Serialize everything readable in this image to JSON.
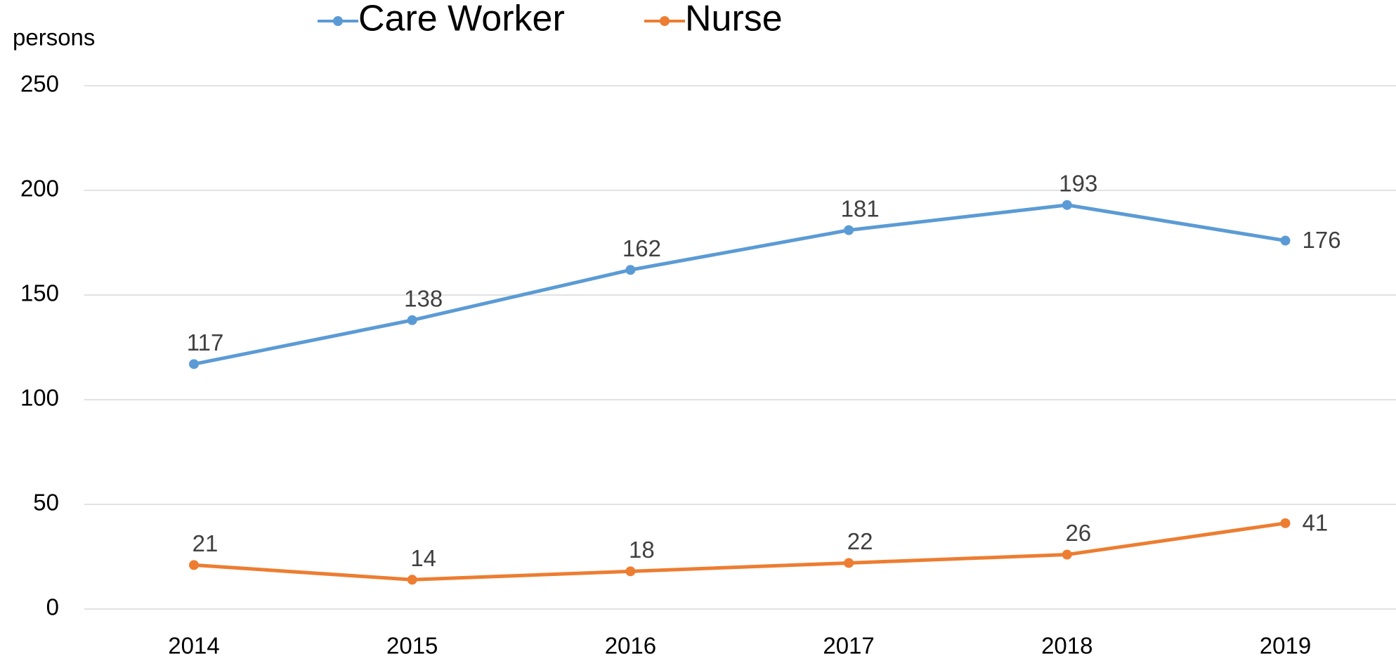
{
  "chart_data": {
    "type": "line",
    "y_label": "persons",
    "categories": [
      "2014",
      "2015",
      "2016",
      "2017",
      "2018",
      "2019"
    ],
    "series": [
      {
        "name": "Care Worker",
        "color": "#5b9bd5",
        "values": [
          117,
          138,
          162,
          181,
          193,
          176
        ]
      },
      {
        "name": "Nurse",
        "color": "#ed7d31",
        "values": [
          21,
          14,
          18,
          22,
          26,
          41
        ]
      }
    ],
    "ylim": [
      0,
      250
    ],
    "yticks": [
      0,
      50,
      100,
      150,
      200,
      250
    ],
    "grid": true,
    "legend": "top"
  }
}
